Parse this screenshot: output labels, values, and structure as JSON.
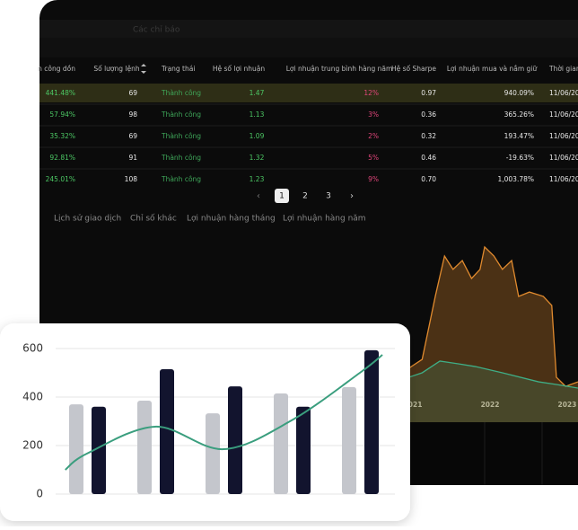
{
  "toolbar": {
    "label": "Các chỉ báo"
  },
  "table": {
    "headers": [
      "n công dồn",
      "Số lượng lệnh",
      "Trạng thái",
      "Hệ số lợi nhuận",
      "Lợi nhuận trung bình hàng năm",
      "Hệ số Sharpe",
      "Lợi nhuận mua và nắm giữ",
      "Thời gian"
    ],
    "rows": [
      [
        "441.48%",
        "69",
        "Thành công",
        "1.47",
        "12%",
        "0.97",
        "940.09%",
        "11/06/20"
      ],
      [
        "57.94%",
        "98",
        "Thành công",
        "1.13",
        "3%",
        "0.36",
        "365.26%",
        "11/06/20"
      ],
      [
        "35.32%",
        "69",
        "Thành công",
        "1.09",
        "2%",
        "0.32",
        "193.47%",
        "11/06/20"
      ],
      [
        "92.81%",
        "91",
        "Thành công",
        "1.32",
        "5%",
        "0.46",
        "-19.63%",
        "11/06/20"
      ],
      [
        "245.01%",
        "108",
        "Thành công",
        "1.23",
        "9%",
        "0.70",
        "1,003.78%",
        "11/06/20"
      ]
    ]
  },
  "pagination": {
    "pages": [
      "1",
      "2",
      "3"
    ]
  },
  "tabs": [
    "Lịch sử giao dịch",
    "Chỉ số khác",
    "Lợi nhuận hàng tháng",
    "Lợi nhuận hàng năm"
  ],
  "chart_data": [
    {
      "type": "area",
      "xlim": [
        2016.16,
        2023.14
      ],
      "xticks": [
        2021,
        2022,
        2023
      ],
      "ylim": [
        0,
        100
      ],
      "series": [
        {
          "color": "#e08a2e",
          "x": [
            2020.77,
            2021.12,
            2021.29,
            2021.41,
            2021.52,
            2021.64,
            2021.76,
            2021.87,
            2021.93,
            2022.05,
            2022.16,
            2022.28,
            2022.37,
            2022.51,
            2022.69,
            2022.8,
            2022.86,
            2022.98,
            2023.14
          ],
          "values": [
            23.8,
            33.3,
            66.7,
            88.1,
            81.0,
            85.7,
            76.2,
            81.0,
            92.9,
            88.1,
            81.0,
            85.7,
            66.7,
            69.0,
            66.7,
            61.9,
            23.8,
            19.0,
            21.4
          ]
        },
        {
          "color": "#3fae86",
          "x": [
            2020.77,
            2021.12,
            2021.35,
            2021.58,
            2021.81,
            2022.16,
            2022.63,
            2022.86,
            2023.14
          ],
          "values": [
            21.4,
            26.2,
            32.4,
            31.0,
            29.5,
            26.2,
            21.4,
            20.0,
            18.1
          ]
        }
      ]
    },
    {
      "type": "bar",
      "categories": [
        null,
        null,
        null,
        null,
        null
      ],
      "ylim": [
        0,
        600
      ],
      "yticks": [
        0,
        200,
        400,
        600
      ],
      "grid": true,
      "series": [
        {
          "color": "#c4c6cc",
          "values": [
            370,
            385,
            333,
            415,
            441
          ]
        },
        {
          "color": "#12142e",
          "values": [
            360,
            515,
            444,
            360,
            593
          ]
        },
        {
          "type": "line",
          "color": "#3a9e7e",
          "x": [
            -0.32,
            0,
            1,
            2,
            3,
            4,
            4.33
          ],
          "values": [
            100,
            167,
            278,
            185,
            304,
            500,
            574
          ]
        }
      ]
    }
  ]
}
